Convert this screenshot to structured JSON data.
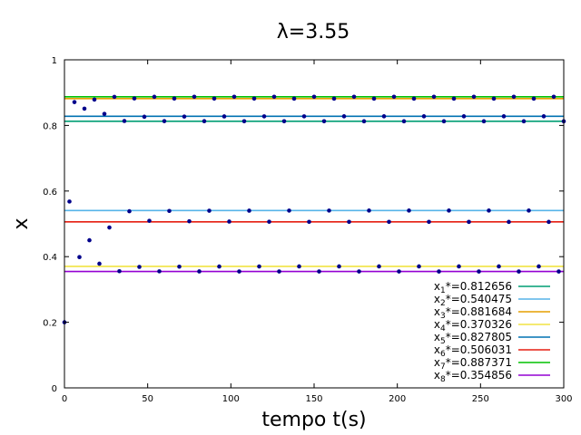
{
  "chart_data": {
    "type": "scatter",
    "title": "λ=3.55",
    "xlabel": "tempo t(s)",
    "ylabel": "x",
    "xlim": [
      0,
      300
    ],
    "ylim": [
      0,
      1
    ],
    "grid": false,
    "legend_position": "bottom-right",
    "x_ticks": [
      "0",
      "50",
      "100",
      "150",
      "200",
      "250",
      "300"
    ],
    "y_ticks": [
      "0",
      "0.2",
      "0.4",
      "0.6",
      "0.8",
      "1"
    ],
    "initial_value": 0.2,
    "logistic_r": 3.55,
    "point_color": "#00008b",
    "series": [
      {
        "name": "x1*=0.812656",
        "sym": "x",
        "sub": "1",
        "val": "*=0.812656",
        "value": 0.812656,
        "color": "#009e73"
      },
      {
        "name": "x2*=0.540475",
        "sym": "x",
        "sub": "2",
        "val": "*=0.540475",
        "value": 0.540475,
        "color": "#56b4e9"
      },
      {
        "name": "x3*=0.881684",
        "sym": "x",
        "sub": "3",
        "val": "*=0.881684",
        "value": 0.881684,
        "color": "#e69f00"
      },
      {
        "name": "x4*=0.370326",
        "sym": "x",
        "sub": "4",
        "val": "*=0.370326",
        "value": 0.370326,
        "color": "#f0e442"
      },
      {
        "name": "x5*=0.827805",
        "sym": "x",
        "sub": "5",
        "val": "*=0.827805",
        "value": 0.827805,
        "color": "#0072b2"
      },
      {
        "name": "x6*=0.506031",
        "sym": "x",
        "sub": "6",
        "val": "*=0.506031",
        "value": 0.506031,
        "color": "#e51e10"
      },
      {
        "name": "x7*=0.887371",
        "sym": "x",
        "sub": "7",
        "val": "*=0.887371",
        "value": 0.887371,
        "color": "#00c000"
      },
      {
        "name": "x8*=0.354856",
        "sym": "x",
        "sub": "8",
        "val": "*=0.354856",
        "value": 0.354856,
        "color": "#9400d3"
      }
    ]
  }
}
